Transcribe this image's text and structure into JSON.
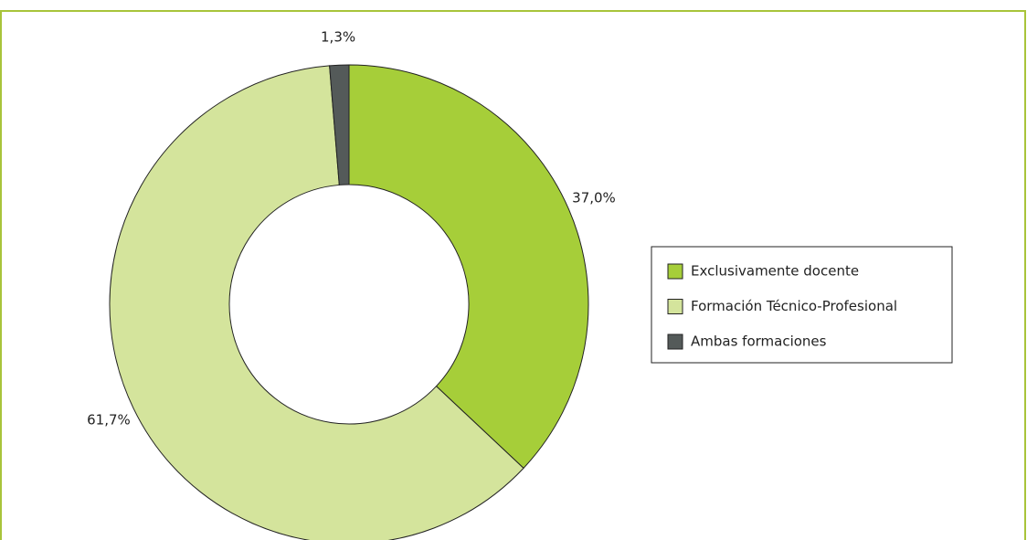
{
  "chart_data": {
    "type": "donut",
    "categories": [
      "Exclusivamente docente",
      "Formación Técnico-Profesional",
      "Ambas formaciones"
    ],
    "values": [
      37.0,
      61.7,
      1.3
    ],
    "value_labels": [
      "37,0%",
      "61,7%",
      "1,3%"
    ],
    "colors": [
      "#a6ce39",
      "#d4e49c",
      "#545a59"
    ],
    "legend": "right"
  }
}
